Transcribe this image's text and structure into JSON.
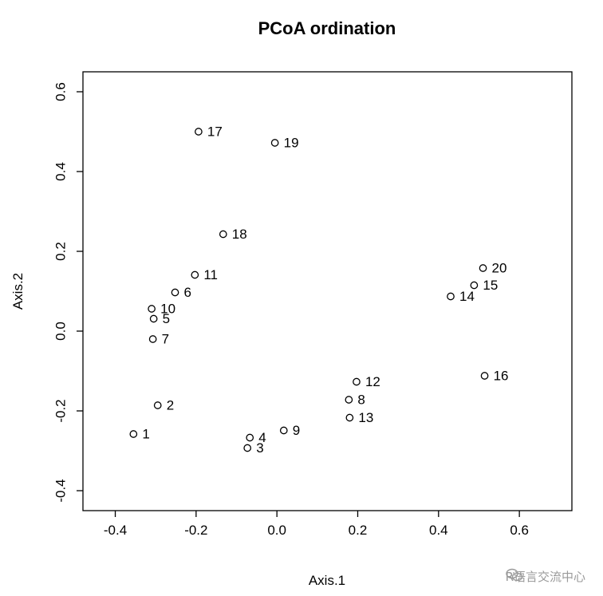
{
  "chart_data": {
    "type": "scatter",
    "title": "PCoA ordination",
    "xlabel": "Axis.1",
    "ylabel": "Axis.2",
    "xlim": [
      -0.48,
      0.73
    ],
    "ylim": [
      -0.45,
      0.65
    ],
    "xticks": [
      -0.4,
      -0.2,
      0.0,
      0.2,
      0.4,
      0.6
    ],
    "xtick_labels": [
      "-0.4",
      "-0.2",
      "0.0",
      "0.2",
      "0.4",
      "0.6"
    ],
    "yticks": [
      -0.4,
      -0.2,
      0.0,
      0.2,
      0.4,
      0.6
    ],
    "ytick_labels": [
      "-0.4",
      "-0.2",
      "0.0",
      "0.2",
      "0.4",
      "0.6"
    ],
    "grid": false,
    "marker": "open-circle",
    "points": [
      {
        "label": "1",
        "x": -0.355,
        "y": -0.258
      },
      {
        "label": "2",
        "x": -0.295,
        "y": -0.186
      },
      {
        "label": "3",
        "x": -0.073,
        "y": -0.293
      },
      {
        "label": "4",
        "x": -0.067,
        "y": -0.267
      },
      {
        "label": "5",
        "x": -0.305,
        "y": 0.031
      },
      {
        "label": "6",
        "x": -0.252,
        "y": 0.097
      },
      {
        "label": "7",
        "x": -0.307,
        "y": -0.02
      },
      {
        "label": "8",
        "x": 0.178,
        "y": -0.172
      },
      {
        "label": "9",
        "x": 0.017,
        "y": -0.249
      },
      {
        "label": "10",
        "x": -0.31,
        "y": 0.056
      },
      {
        "label": "11",
        "x": -0.203,
        "y": 0.141
      },
      {
        "label": "12",
        "x": 0.197,
        "y": -0.127
      },
      {
        "label": "13",
        "x": 0.18,
        "y": -0.217
      },
      {
        "label": "14",
        "x": 0.43,
        "y": 0.087
      },
      {
        "label": "15",
        "x": 0.488,
        "y": 0.115
      },
      {
        "label": "16",
        "x": 0.514,
        "y": -0.112
      },
      {
        "label": "17",
        "x": -0.194,
        "y": 0.5
      },
      {
        "label": "18",
        "x": -0.133,
        "y": 0.243
      },
      {
        "label": "19",
        "x": -0.005,
        "y": 0.472
      },
      {
        "label": "20",
        "x": 0.51,
        "y": 0.158
      }
    ]
  },
  "watermark": {
    "icon": "wechat-icon",
    "text": "R语言交流中心"
  }
}
